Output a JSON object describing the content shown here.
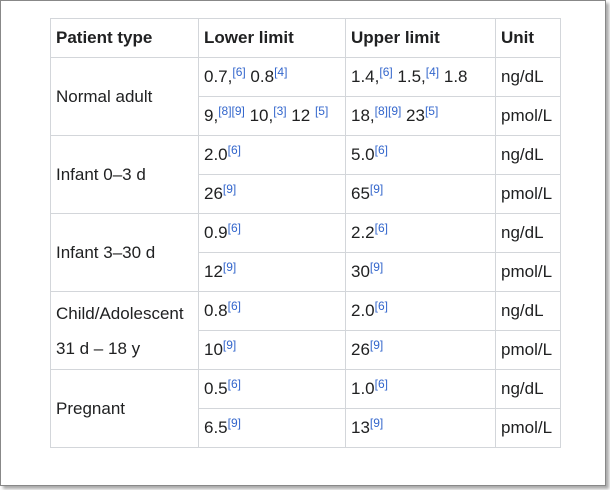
{
  "table": {
    "header": [
      "Patient type",
      "Lower limit",
      "Upper limit",
      "Unit"
    ],
    "groups": [
      {
        "patient": [
          "Normal adult"
        ],
        "rows": [
          {
            "lower": [
              {
                "text": "0.7,",
                "ref": "[6]"
              },
              {
                "text": " 0.8",
                "ref": "[4]"
              }
            ],
            "upper": [
              {
                "text": "1.4,",
                "ref": "[6]"
              },
              {
                "text": " 1.5,",
                "ref": "[4]"
              },
              {
                "text": " 1.8"
              }
            ],
            "unit": "ng/dL"
          },
          {
            "lower": [
              {
                "text": "9,",
                "ref": "[8][9]"
              },
              {
                "text": " 10,",
                "ref": "[3]"
              },
              {
                "text": " 12 ",
                "ref": "[5]"
              }
            ],
            "upper": [
              {
                "text": "18,",
                "ref": "[8][9]"
              },
              {
                "text": " 23",
                "ref": "[5]"
              }
            ],
            "unit": "pmol/L"
          }
        ]
      },
      {
        "patient": [
          "Infant 0–3 d"
        ],
        "rows": [
          {
            "lower": [
              {
                "text": "2.0",
                "ref": "[6]"
              }
            ],
            "upper": [
              {
                "text": "5.0",
                "ref": "[6]"
              }
            ],
            "unit": "ng/dL"
          },
          {
            "lower": [
              {
                "text": "26",
                "ref": "[9]"
              }
            ],
            "upper": [
              {
                "text": "65",
                "ref": "[9]"
              }
            ],
            "unit": "pmol/L"
          }
        ]
      },
      {
        "patient": [
          "Infant 3–30 d"
        ],
        "rows": [
          {
            "lower": [
              {
                "text": "0.9",
                "ref": "[6]"
              }
            ],
            "upper": [
              {
                "text": "2.2",
                "ref": "[6]"
              }
            ],
            "unit": "ng/dL"
          },
          {
            "lower": [
              {
                "text": "12",
                "ref": "[9]"
              }
            ],
            "upper": [
              {
                "text": "30",
                "ref": "[9]"
              }
            ],
            "unit": "pmol/L"
          }
        ]
      },
      {
        "patient": [
          "Child/Adolescent",
          "31 d – 18 y"
        ],
        "rows": [
          {
            "lower": [
              {
                "text": "0.8",
                "ref": "[6]"
              }
            ],
            "upper": [
              {
                "text": "2.0",
                "ref": "[6]"
              }
            ],
            "unit": "ng/dL"
          },
          {
            "lower": [
              {
                "text": "10",
                "ref": "[9]"
              }
            ],
            "upper": [
              {
                "text": "26",
                "ref": "[9]"
              }
            ],
            "unit": "pmol/L"
          }
        ]
      },
      {
        "patient": [
          "Pregnant"
        ],
        "rows": [
          {
            "lower": [
              {
                "text": "0.5",
                "ref": "[6]"
              }
            ],
            "upper": [
              {
                "text": "1.0",
                "ref": "[6]"
              }
            ],
            "unit": "ng/dL"
          },
          {
            "lower": [
              {
                "text": "6.5",
                "ref": "[9]"
              }
            ],
            "upper": [
              {
                "text": "13",
                "ref": "[9]"
              }
            ],
            "unit": "pmol/L"
          }
        ]
      }
    ]
  }
}
